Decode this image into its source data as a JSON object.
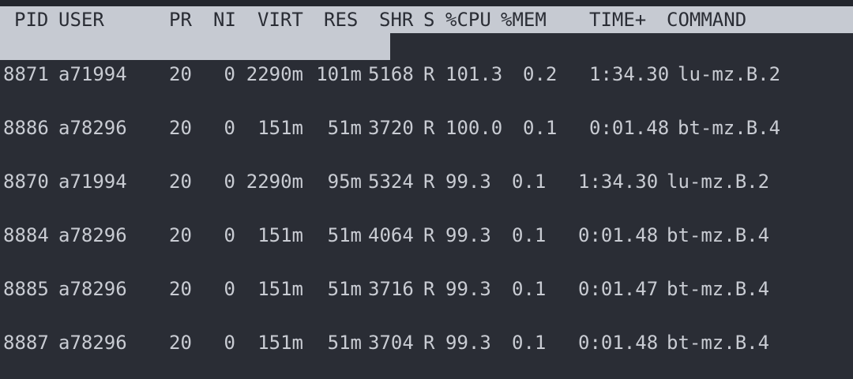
{
  "header": {
    "pid": "PID",
    "user": "USER",
    "pr": "PR",
    "ni": "NI",
    "virt": "VIRT",
    "res": "RES",
    "shr": "SHR",
    "s": "S",
    "cpu": "%CPU",
    "mem": "%MEM",
    "time": "TIME+",
    "command": "COMMAND"
  },
  "processes": [
    {
      "pid": "8871",
      "user": "a71994",
      "pr": "20",
      "ni": "0",
      "virt": "2290m",
      "res": "101m",
      "shr": "5168",
      "s": "R",
      "cpu": "101.3",
      "mem": "0.2",
      "time": "1:34.30",
      "command": "lu-mz.B.2"
    },
    {
      "pid": "8886",
      "user": "a78296",
      "pr": "20",
      "ni": "0",
      "virt": "151m",
      "res": "51m",
      "shr": "3720",
      "s": "R",
      "cpu": "100.0",
      "mem": "0.1",
      "time": "0:01.48",
      "command": "bt-mz.B.4"
    },
    {
      "pid": "8870",
      "user": "a71994",
      "pr": "20",
      "ni": "0",
      "virt": "2290m",
      "res": "95m",
      "shr": "5324",
      "s": "R",
      "cpu": "99.3",
      "mem": "0.1",
      "time": "1:34.30",
      "command": "lu-mz.B.2"
    },
    {
      "pid": "8884",
      "user": "a78296",
      "pr": "20",
      "ni": "0",
      "virt": "151m",
      "res": "51m",
      "shr": "4064",
      "s": "R",
      "cpu": "99.3",
      "mem": "0.1",
      "time": "0:01.48",
      "command": "bt-mz.B.4"
    },
    {
      "pid": "8885",
      "user": "a78296",
      "pr": "20",
      "ni": "0",
      "virt": "151m",
      "res": "51m",
      "shr": "3716",
      "s": "R",
      "cpu": "99.3",
      "mem": "0.1",
      "time": "0:01.47",
      "command": "bt-mz.B.4"
    },
    {
      "pid": "8887",
      "user": "a78296",
      "pr": "20",
      "ni": "0",
      "virt": "151m",
      "res": "51m",
      "shr": "3704",
      "s": "R",
      "cpu": "99.3",
      "mem": "0.1",
      "time": "0:01.48",
      "command": "bt-mz.B.4"
    }
  ]
}
